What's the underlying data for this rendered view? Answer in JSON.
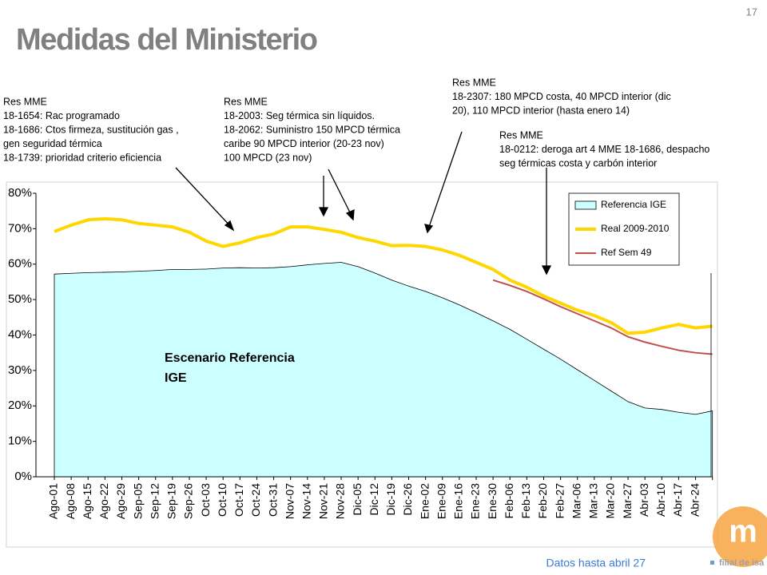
{
  "page_number": "17",
  "footnote": "Datos hasta abril 27",
  "logo_text": "filial de isa",
  "annotations": [
    {
      "lines": [
        "Res MME",
        "18-1654: Rac programado",
        "18-1686: Ctos firmeza, sustitución gas ,",
        "gen seguridad térmica",
        "18-1739: prioridad criterio eficiencia"
      ]
    },
    {
      "lines": [
        "Res MME",
        "18-2003: Seg térmica sin líquidos.",
        "18-2062: Suministro 150 MPCD térmica",
        "caribe 90 MPCD interior (20-23 nov)",
        "100 MPCD (23 nov)"
      ]
    },
    {
      "lines": [
        "Res MME",
        "18-2307: 180 MPCD costa, 40 MPCD interior (dic",
        "20),  110 MPCD interior (hasta enero 14)"
      ]
    },
    {
      "lines": [
        "Res MME",
        "18-0212: deroga art 4 MME 18-1686, despacho",
        "seg térmicas costa y carbón interior"
      ]
    }
  ],
  "chart_data": {
    "type": "line",
    "title": "Medidas del Ministerio",
    "area_label": [
      "Escenario Referencia",
      "IGE"
    ],
    "categories": [
      "Ago-01",
      "Ago-08",
      "Ago-15",
      "Ago-22",
      "Ago-29",
      "Sep-05",
      "Sep-12",
      "Sep-19",
      "Sep-26",
      "Oct-03",
      "Oct-10",
      "Oct-17",
      "Oct-24",
      "Oct-31",
      "Nov-07",
      "Nov-14",
      "Nov-21",
      "Nov-28",
      "Dic-05",
      "Dic-12",
      "Dic-19",
      "Dic-26",
      "Ene-02",
      "Ene-09",
      "Ene-16",
      "Ene-23",
      "Ene-30",
      "Feb-06",
      "Feb-13",
      "Feb-20",
      "Feb-27",
      "Mar-06",
      "Mar-13",
      "Mar-20",
      "Mar-27",
      "Abr-03",
      "Abr-10",
      "Abr-17",
      "Abr-24",
      null
    ],
    "series": [
      {
        "name": "Referencia IGE",
        "kind": "area",
        "color": "#ccffff",
        "values": [
          57.2,
          57.4,
          57.6,
          57.7,
          57.8,
          58.0,
          58.2,
          58.5,
          58.5,
          58.6,
          58.9,
          59.0,
          58.9,
          59.0,
          59.3,
          59.8,
          60.2,
          60.5,
          59.3,
          57.5,
          55.5,
          53.8,
          52.3,
          50.5,
          48.5,
          46.3,
          44.0,
          41.6,
          38.8,
          36.0,
          33.2,
          30.2,
          27.2,
          24.2,
          21.2,
          19.4,
          19.0,
          18.2,
          17.6,
          18.6
        ]
      },
      {
        "name": "Real 2009-2010",
        "kind": "line",
        "color": "#ffd700",
        "values": [
          69.2,
          71.0,
          72.5,
          72.8,
          72.5,
          71.5,
          71.0,
          70.5,
          69.0,
          66.5,
          65.0,
          66.0,
          67.5,
          68.5,
          70.5,
          70.5,
          69.8,
          69.0,
          67.5,
          66.5,
          65.2,
          65.3,
          65.0,
          64.0,
          62.5,
          60.5,
          58.5,
          55.5,
          53.5,
          51.0,
          49.0,
          47.0,
          45.5,
          43.5,
          40.5,
          40.8,
          42.0,
          43.0,
          42.0,
          42.5
        ]
      },
      {
        "name": "Ref Sem 49",
        "kind": "line",
        "color": "#c0504d",
        "values": [
          null,
          null,
          null,
          null,
          null,
          null,
          null,
          null,
          null,
          null,
          null,
          null,
          null,
          null,
          null,
          null,
          null,
          null,
          null,
          null,
          null,
          null,
          null,
          null,
          null,
          null,
          55.5,
          54.0,
          52.3,
          50.2,
          48.0,
          46.0,
          44.0,
          42.0,
          39.5,
          38.0,
          36.8,
          35.7,
          35.0,
          34.6
        ]
      }
    ],
    "ylim": [
      0,
      80
    ],
    "yticks": [
      {
        "value": 0,
        "label": "0%"
      },
      {
        "value": 10,
        "label": "10%"
      },
      {
        "value": 20,
        "label": "20%"
      },
      {
        "value": 30,
        "label": "30%"
      },
      {
        "value": 40,
        "label": "40%"
      },
      {
        "value": 50,
        "label": "50%"
      },
      {
        "value": 60,
        "label": "60%"
      },
      {
        "value": 70,
        "label": "70%"
      },
      {
        "value": 80,
        "label": "80%"
      }
    ],
    "legend": "top-right"
  }
}
